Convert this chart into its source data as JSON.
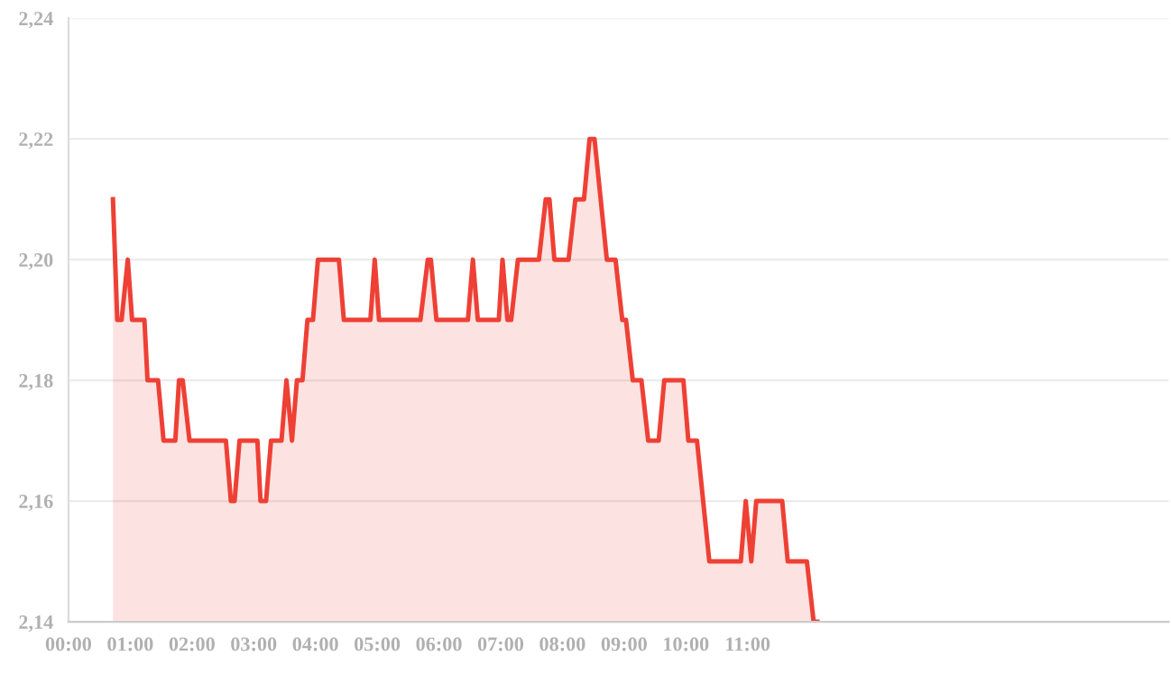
{
  "chart_data": {
    "type": "area",
    "x": [
      0.72,
      0.79,
      0.86,
      0.96,
      1.03,
      1.23,
      1.28,
      1.45,
      1.54,
      1.73,
      1.79,
      1.85,
      1.96,
      2.55,
      2.63,
      2.69,
      2.77,
      3.06,
      3.11,
      3.2,
      3.28,
      3.45,
      3.53,
      3.62,
      3.7,
      3.79,
      3.87,
      3.96,
      4.04,
      4.38,
      4.46,
      4.89,
      4.96,
      5.03,
      5.7,
      5.82,
      5.87,
      5.96,
      6.47,
      6.55,
      6.63,
      6.97,
      7.03,
      7.11,
      7.17,
      7.28,
      7.62,
      7.73,
      7.79,
      7.87,
      8.1,
      8.21,
      8.35,
      8.44,
      8.52,
      8.72,
      8.86,
      8.97,
      9.03,
      9.14,
      9.28,
      9.39,
      9.56,
      9.65,
      9.96,
      10.04,
      10.18,
      10.38,
      10.89,
      10.97,
      11.06,
      11.14,
      11.56,
      11.65,
      11.96,
      12.07,
      12.13
    ],
    "series": [
      {
        "color": "#ee4035",
        "values": [
          2.21,
          2.19,
          2.19,
          2.2,
          2.19,
          2.19,
          2.18,
          2.18,
          2.17,
          2.17,
          2.18,
          2.18,
          2.17,
          2.17,
          2.16,
          2.16,
          2.17,
          2.17,
          2.16,
          2.16,
          2.17,
          2.17,
          2.18,
          2.17,
          2.18,
          2.18,
          2.19,
          2.19,
          2.2,
          2.2,
          2.19,
          2.19,
          2.2,
          2.19,
          2.19,
          2.2,
          2.2,
          2.19,
          2.19,
          2.2,
          2.19,
          2.19,
          2.2,
          2.19,
          2.19,
          2.2,
          2.2,
          2.21,
          2.21,
          2.2,
          2.2,
          2.21,
          2.21,
          2.22,
          2.22,
          2.2,
          2.2,
          2.19,
          2.19,
          2.18,
          2.18,
          2.17,
          2.17,
          2.18,
          2.18,
          2.17,
          2.17,
          2.15,
          2.15,
          2.16,
          2.15,
          2.16,
          2.16,
          2.15,
          2.15,
          2.14,
          2.14
        ]
      }
    ],
    "xlim": [
      0,
      17.82
    ],
    "xticks": [
      {
        "value": 0,
        "label": "00:00"
      },
      {
        "value": 1,
        "label": "01:00"
      },
      {
        "value": 2,
        "label": "02:00"
      },
      {
        "value": 3,
        "label": "03:00"
      },
      {
        "value": 4,
        "label": "04:00"
      },
      {
        "value": 5,
        "label": "05:00"
      },
      {
        "value": 6,
        "label": "06:00"
      },
      {
        "value": 7,
        "label": "07:00"
      },
      {
        "value": 8,
        "label": "08:00"
      },
      {
        "value": 9,
        "label": "09:00"
      },
      {
        "value": 10,
        "label": "10:00"
      },
      {
        "value": 11,
        "label": "11:00"
      }
    ],
    "ylim": [
      2.14,
      2.24
    ],
    "yticks": [
      {
        "value": 2.14,
        "label": "2,14"
      },
      {
        "value": 2.16,
        "label": "2,16"
      },
      {
        "value": 2.18,
        "label": "2,18"
      },
      {
        "value": 2.2,
        "label": "2,20"
      },
      {
        "value": 2.22,
        "label": "2,22"
      },
      {
        "value": 2.24,
        "label": "2,24"
      }
    ],
    "grid": "y"
  }
}
